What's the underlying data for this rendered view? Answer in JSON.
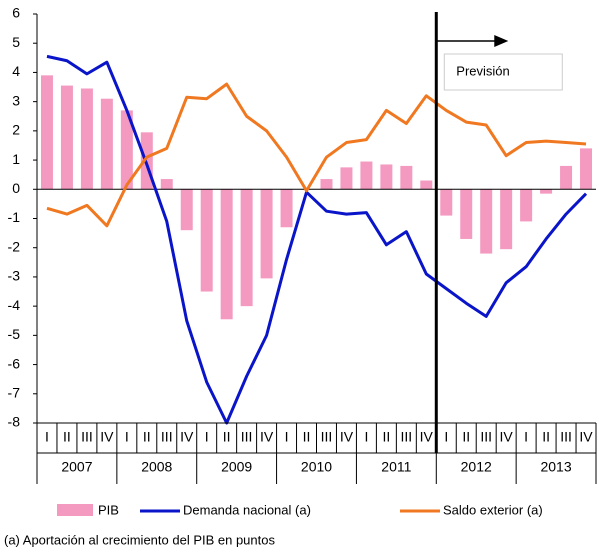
{
  "chart_data": {
    "type": "bar-line",
    "categories": [
      "I",
      "II",
      "III",
      "IV",
      "I",
      "II",
      "III",
      "IV",
      "I",
      "II",
      "III",
      "IV",
      "I",
      "II",
      "III",
      "IV",
      "I",
      "II",
      "III",
      "IV",
      "I",
      "II",
      "III",
      "IV",
      "I",
      "II",
      "III",
      "IV"
    ],
    "years": [
      "2007",
      "2008",
      "2009",
      "2010",
      "2011",
      "2012",
      "2013"
    ],
    "series": [
      {
        "name": "PIB",
        "kind": "bar",
        "color": "#f49ac1",
        "values": [
          3.9,
          3.55,
          3.45,
          3.1,
          2.7,
          1.95,
          0.35,
          -1.4,
          -3.5,
          -4.45,
          -4.0,
          -3.05,
          -1.3,
          0.0,
          0.35,
          0.75,
          0.95,
          0.85,
          0.8,
          0.3,
          -0.9,
          -1.7,
          -2.2,
          -2.05,
          -1.1,
          -0.15,
          0.8,
          1.4
        ]
      },
      {
        "name": "Demanda nacional (a)",
        "kind": "line",
        "color": "#0a14c8",
        "values": [
          4.55,
          4.4,
          3.95,
          4.35,
          2.7,
          0.85,
          -1.1,
          -4.5,
          -6.6,
          -8.0,
          -6.4,
          -5.0,
          -2.4,
          -0.1,
          -0.75,
          -0.85,
          -0.8,
          -1.9,
          -1.45,
          -2.9,
          -3.4,
          -3.9,
          -4.35,
          -3.2,
          -2.65,
          -1.7,
          -0.85,
          -0.15
        ]
      },
      {
        "name": "Saldo exterior (a)",
        "kind": "line",
        "color": "#f07820",
        "values": [
          -0.65,
          -0.85,
          -0.55,
          -1.25,
          0.15,
          1.1,
          1.4,
          3.15,
          3.1,
          3.6,
          2.5,
          2.0,
          1.1,
          -0.05,
          1.1,
          1.6,
          1.7,
          2.7,
          2.25,
          3.2,
          2.7,
          2.3,
          2.2,
          1.15,
          1.6,
          1.65,
          1.6,
          1.55
        ]
      }
    ],
    "ylim": [
      -8,
      6
    ],
    "yticks": [
      -8,
      -7,
      -6,
      -5,
      -4,
      -3,
      -2,
      -1,
      0,
      1,
      2,
      3,
      4,
      5,
      6
    ],
    "annotation": "Previsión",
    "note": "(a) Aportación al crecimiento del PIB en puntos"
  }
}
